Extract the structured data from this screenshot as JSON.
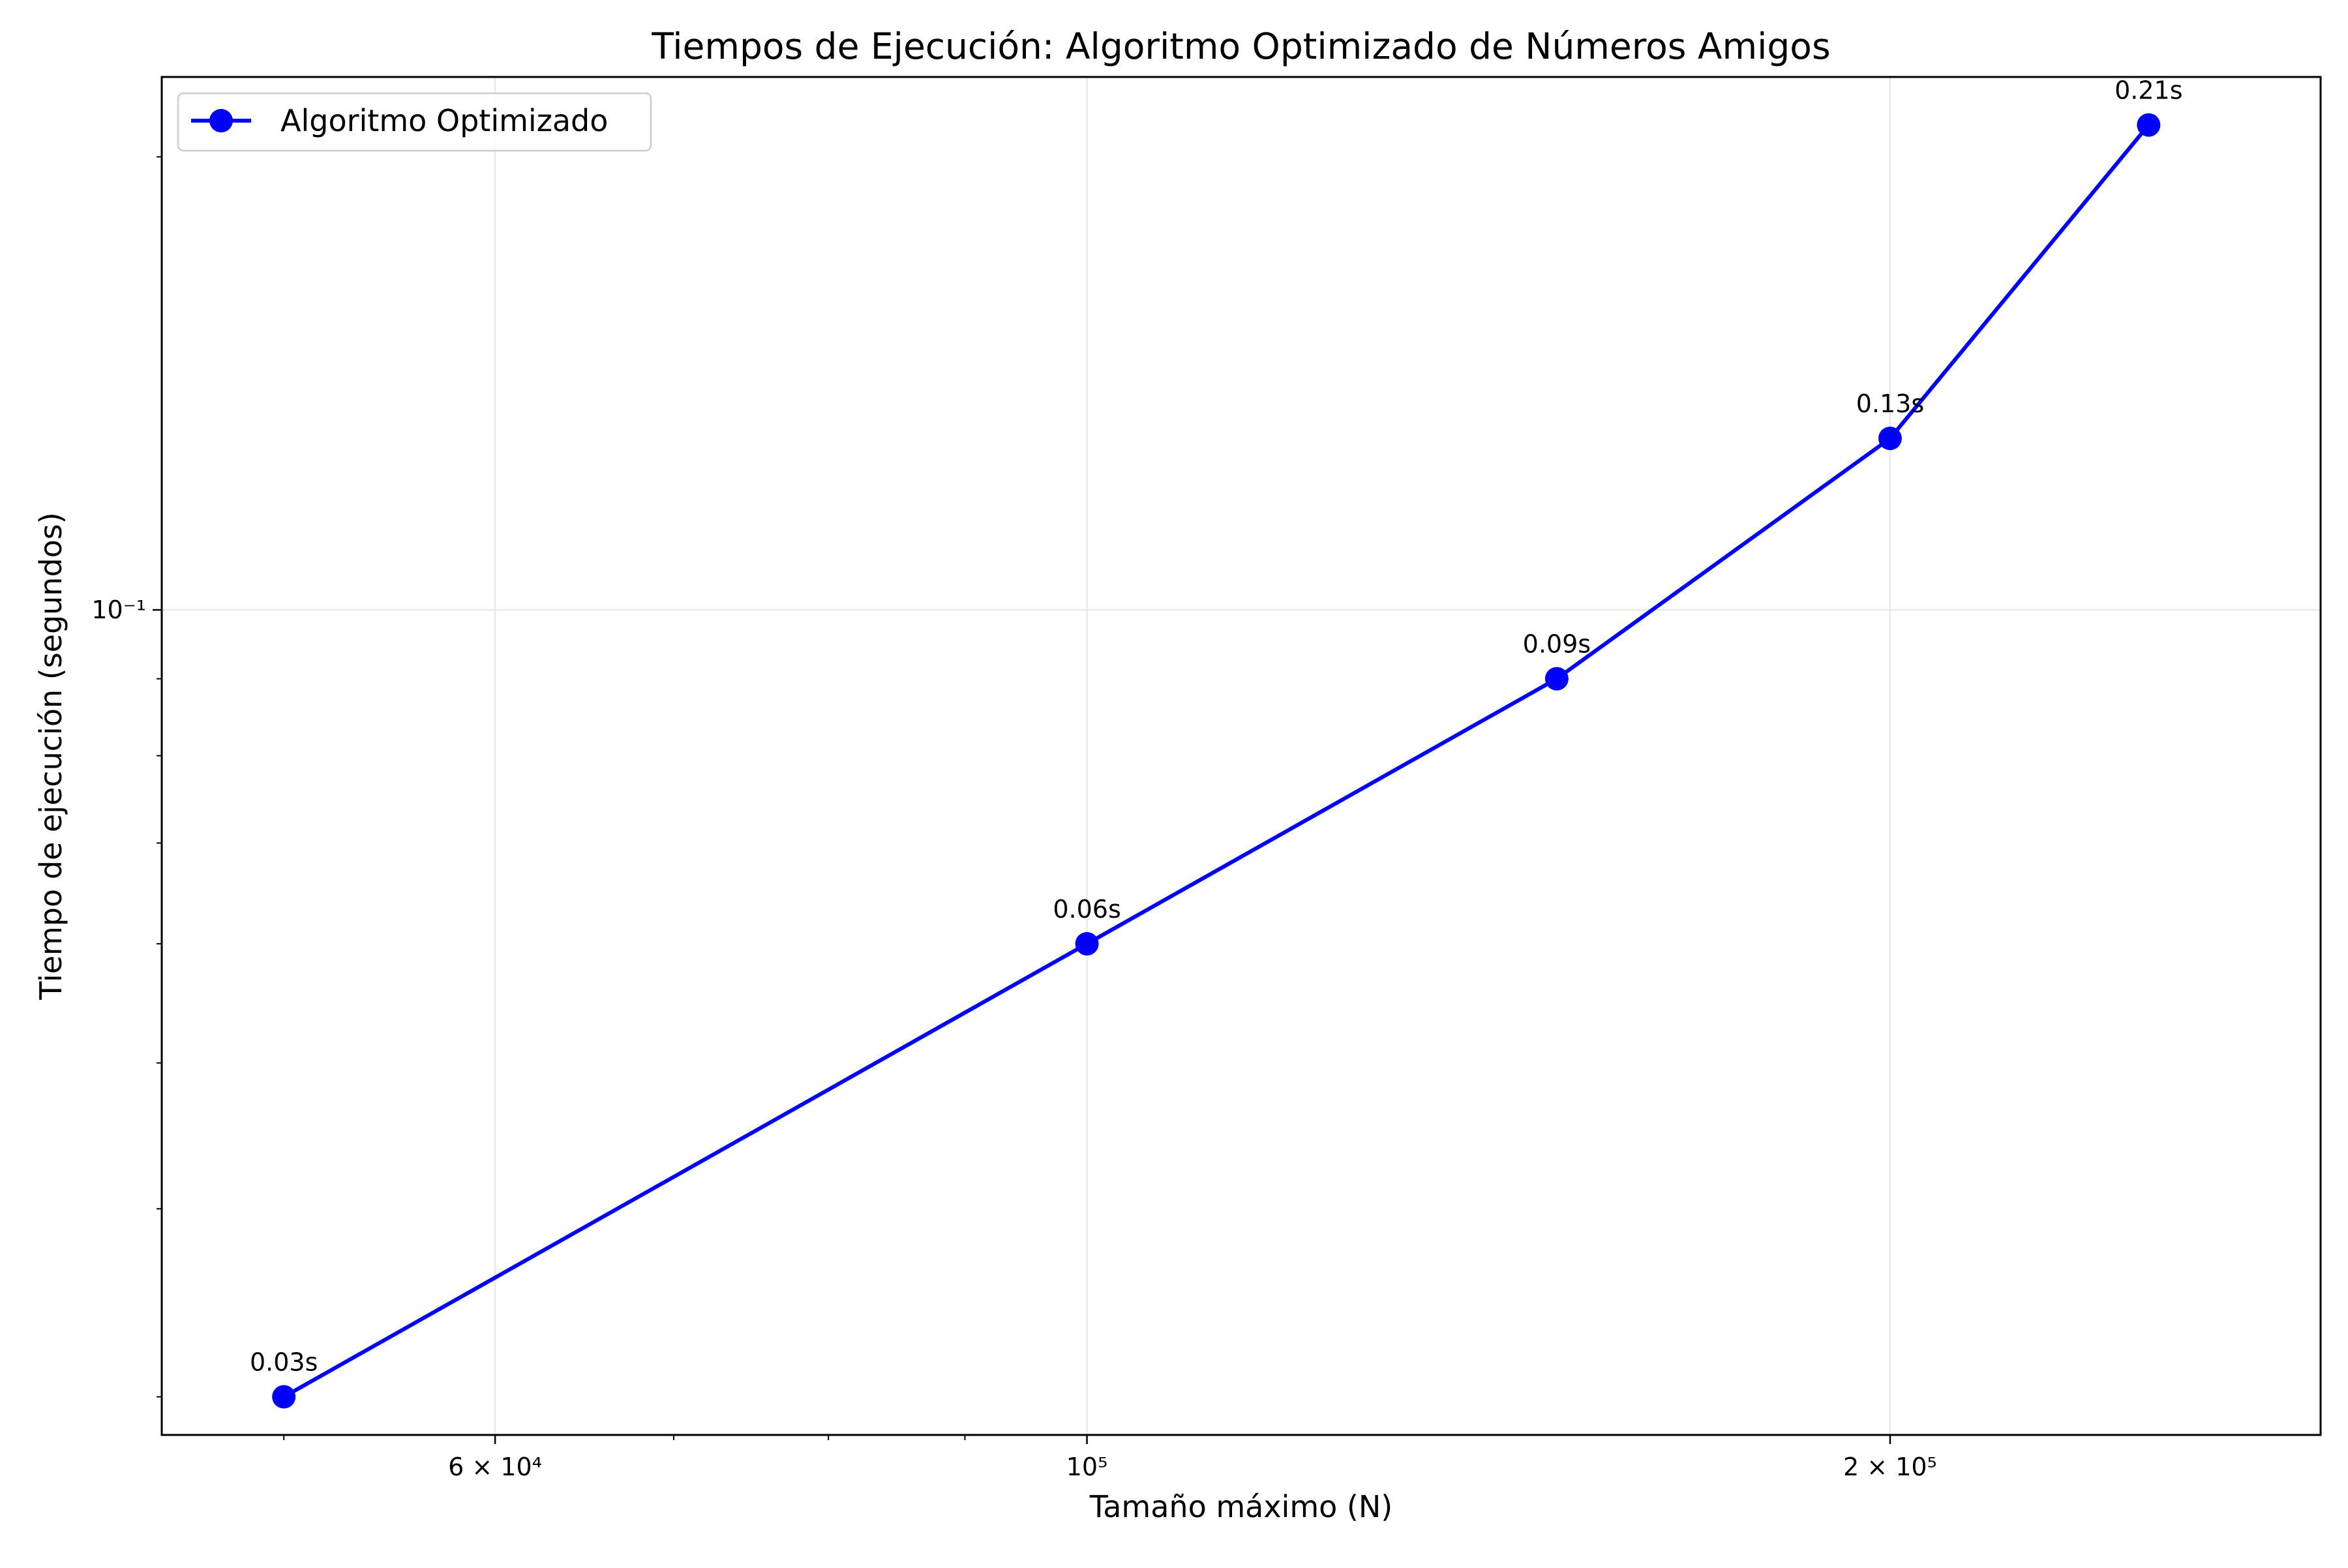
{
  "chart_data": {
    "type": "line",
    "title": "Tiempos de Ejecución: Algoritmo Optimizado de Números Amigos",
    "xlabel": "Tamaño máximo (N)",
    "ylabel": "Tiempo de ejecución (segundos)",
    "x_scale": "log",
    "y_scale": "log",
    "xlim": [
      45000,
      290000
    ],
    "ylim": [
      0.0283,
      0.226
    ],
    "grid": true,
    "legend_position": "upper-left",
    "x_ticks": [
      {
        "value": 60000,
        "label": "6 × 10⁴"
      },
      {
        "value": 100000,
        "label": "10⁵"
      },
      {
        "value": 200000,
        "label": "2 × 10⁵"
      }
    ],
    "x_minor_ticks": [
      50000,
      70000,
      80000,
      90000,
      300000
    ],
    "y_ticks": [
      {
        "value": 0.1,
        "label": "10⁻¹"
      }
    ],
    "y_minor_ticks": [
      0.03,
      0.04,
      0.05,
      0.06,
      0.07,
      0.08,
      0.09,
      0.2
    ],
    "series": [
      {
        "name": "Algoritmo Optimizado",
        "color": "#0000ff",
        "x": [
          50000,
          100000,
          150000,
          200000,
          250000
        ],
        "y": [
          0.03,
          0.06,
          0.09,
          0.13,
          0.21
        ],
        "labels": [
          "0.03s",
          "0.06s",
          "0.09s",
          "0.13s",
          "0.21s"
        ]
      }
    ]
  }
}
